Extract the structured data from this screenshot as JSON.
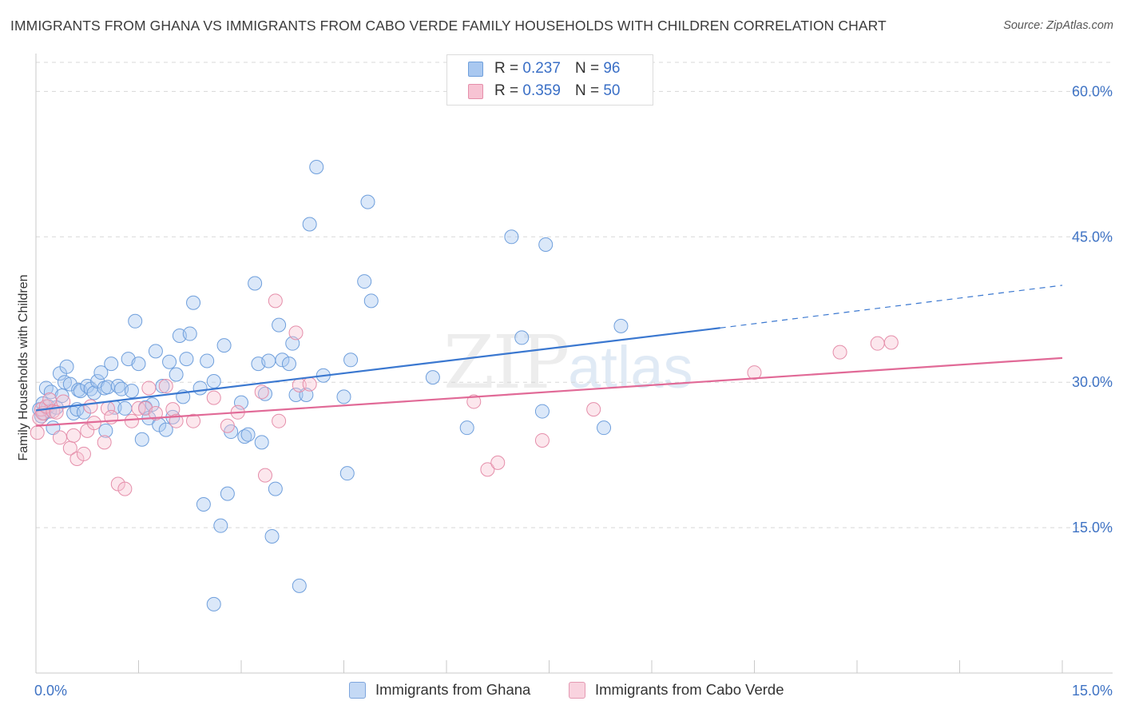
{
  "header": {
    "title": "IMMIGRANTS FROM GHANA VS IMMIGRANTS FROM CABO VERDE FAMILY HOUSEHOLDS WITH CHILDREN CORRELATION CHART",
    "source": "Source: ZipAtlas.com"
  },
  "watermark": {
    "zip": "ZIP",
    "atlas": "atlas"
  },
  "legend": {
    "r_label": "R =",
    "n_label": "N =",
    "rows": [
      {
        "r": "0.237",
        "n": "96",
        "color": "#a9c8f0",
        "border": "#6f9fdc"
      },
      {
        "r": "0.359",
        "n": "50",
        "color": "#f7c3d3",
        "border": "#e58eaa"
      }
    ]
  },
  "bottom_legend": [
    {
      "label": "Immigrants from Ghana",
      "color": "#c4d9f5",
      "border": "#7ea6dd"
    },
    {
      "label": "Immigrants from Cabo Verde",
      "color": "#f9d3df",
      "border": "#e49ab3"
    }
  ],
  "colors": {
    "ghana": "#3b78d0",
    "cabo": "#e16a97",
    "tick_text": "#3f73c4",
    "grid": "#d8d8d8"
  },
  "chart_data": {
    "type": "scatter",
    "title": "IMMIGRANTS FROM GHANA VS IMMIGRANTS FROM CABO VERDE FAMILY HOUSEHOLDS WITH CHILDREN CORRELATION CHART",
    "xlabel": "",
    "ylabel": "Family Households with Children",
    "xlim": [
      0,
      15
    ],
    "ylim": [
      0,
      63
    ],
    "x_tick_labels": [
      "0.0%",
      "15.0%"
    ],
    "y_ticks": [
      15,
      30,
      45,
      60
    ],
    "y_tick_labels": [
      "15.0%",
      "30.0%",
      "45.0%",
      "60.0%"
    ],
    "grid": "horizontal dashed",
    "legend_position": "top-center",
    "series": [
      {
        "name": "Immigrants from Ghana",
        "color": "#6f9fdc",
        "points": [
          [
            0.05,
            27.2
          ],
          [
            0.08,
            26.5
          ],
          [
            0.1,
            27.8
          ],
          [
            0.12,
            26.8
          ],
          [
            0.15,
            29.4
          ],
          [
            0.18,
            27.5
          ],
          [
            0.2,
            27.0
          ],
          [
            0.22,
            29.0
          ],
          [
            0.25,
            25.3
          ],
          [
            0.3,
            27.4
          ],
          [
            0.35,
            30.9
          ],
          [
            0.38,
            28.6
          ],
          [
            0.42,
            30.0
          ],
          [
            0.45,
            31.6
          ],
          [
            0.5,
            29.8
          ],
          [
            0.55,
            26.8
          ],
          [
            0.6,
            27.2
          ],
          [
            0.62,
            29.2
          ],
          [
            0.65,
            29.1
          ],
          [
            0.7,
            26.9
          ],
          [
            0.75,
            29.6
          ],
          [
            0.8,
            29.3
          ],
          [
            0.85,
            28.9
          ],
          [
            0.9,
            30.1
          ],
          [
            0.95,
            31.0
          ],
          [
            1.0,
            29.4
          ],
          [
            1.02,
            25.0
          ],
          [
            1.05,
            29.5
          ],
          [
            1.1,
            31.9
          ],
          [
            1.15,
            27.4
          ],
          [
            1.2,
            29.6
          ],
          [
            1.25,
            29.3
          ],
          [
            1.3,
            27.3
          ],
          [
            1.35,
            32.4
          ],
          [
            1.4,
            29.1
          ],
          [
            1.45,
            36.3
          ],
          [
            1.5,
            31.9
          ],
          [
            1.55,
            24.1
          ],
          [
            1.6,
            27.4
          ],
          [
            1.65,
            26.3
          ],
          [
            1.7,
            27.7
          ],
          [
            1.75,
            33.2
          ],
          [
            1.8,
            25.6
          ],
          [
            1.85,
            29.6
          ],
          [
            1.9,
            25.1
          ],
          [
            1.95,
            32.1
          ],
          [
            2.0,
            26.4
          ],
          [
            2.05,
            30.8
          ],
          [
            2.1,
            34.8
          ],
          [
            2.15,
            28.5
          ],
          [
            2.2,
            32.4
          ],
          [
            2.25,
            35.0
          ],
          [
            2.3,
            38.2
          ],
          [
            2.4,
            29.4
          ],
          [
            2.45,
            17.4
          ],
          [
            2.5,
            32.2
          ],
          [
            2.6,
            30.1
          ],
          [
            2.7,
            15.2
          ],
          [
            2.75,
            33.8
          ],
          [
            2.8,
            18.5
          ],
          [
            2.85,
            24.9
          ],
          [
            3.0,
            27.9
          ],
          [
            3.05,
            24.4
          ],
          [
            3.1,
            24.6
          ],
          [
            3.2,
            40.2
          ],
          [
            3.25,
            31.9
          ],
          [
            3.3,
            23.8
          ],
          [
            3.35,
            28.8
          ],
          [
            3.4,
            32.2
          ],
          [
            3.5,
            19.0
          ],
          [
            3.55,
            35.9
          ],
          [
            3.6,
            32.3
          ],
          [
            3.7,
            31.9
          ],
          [
            3.75,
            34.0
          ],
          [
            3.8,
            28.7
          ],
          [
            3.95,
            28.7
          ],
          [
            4.0,
            46.3
          ],
          [
            4.1,
            52.2
          ],
          [
            4.2,
            30.7
          ],
          [
            4.5,
            28.5
          ],
          [
            4.55,
            20.6
          ],
          [
            4.6,
            32.3
          ],
          [
            4.8,
            40.4
          ],
          [
            4.85,
            48.6
          ],
          [
            4.9,
            38.4
          ],
          [
            3.45,
            14.1
          ],
          [
            2.6,
            7.1
          ],
          [
            3.85,
            9.0
          ],
          [
            5.8,
            30.5
          ],
          [
            6.3,
            25.3
          ],
          [
            6.95,
            45.0
          ],
          [
            7.1,
            34.6
          ],
          [
            7.4,
            27.0
          ],
          [
            7.45,
            44.2
          ],
          [
            8.3,
            25.3
          ],
          [
            8.55,
            35.8
          ]
        ]
      },
      {
        "name": "Immigrants from Cabo Verde",
        "color": "#e58eaa",
        "points": [
          [
            0.02,
            24.8
          ],
          [
            0.05,
            26.3
          ],
          [
            0.08,
            27.2
          ],
          [
            0.1,
            26.8
          ],
          [
            0.15,
            27.5
          ],
          [
            0.2,
            28.2
          ],
          [
            0.25,
            27.0
          ],
          [
            0.3,
            26.9
          ],
          [
            0.35,
            24.3
          ],
          [
            0.4,
            28.0
          ],
          [
            0.5,
            23.2
          ],
          [
            0.55,
            24.5
          ],
          [
            0.6,
            22.1
          ],
          [
            0.7,
            22.6
          ],
          [
            0.75,
            25.0
          ],
          [
            0.8,
            27.5
          ],
          [
            0.85,
            25.8
          ],
          [
            1.0,
            23.8
          ],
          [
            1.05,
            27.3
          ],
          [
            1.1,
            26.4
          ],
          [
            1.2,
            19.5
          ],
          [
            1.3,
            19.0
          ],
          [
            1.4,
            26.0
          ],
          [
            1.5,
            27.3
          ],
          [
            1.6,
            27.3
          ],
          [
            1.65,
            29.4
          ],
          [
            1.75,
            26.8
          ],
          [
            1.9,
            29.6
          ],
          [
            2.0,
            27.2
          ],
          [
            2.05,
            26.0
          ],
          [
            2.3,
            26.0
          ],
          [
            2.6,
            28.4
          ],
          [
            2.8,
            25.5
          ],
          [
            2.95,
            26.9
          ],
          [
            3.3,
            29.0
          ],
          [
            3.35,
            20.4
          ],
          [
            3.5,
            38.4
          ],
          [
            3.55,
            26.0
          ],
          [
            3.8,
            35.1
          ],
          [
            3.85,
            29.7
          ],
          [
            4.0,
            29.8
          ],
          [
            6.4,
            28.0
          ],
          [
            6.6,
            21.0
          ],
          [
            6.75,
            21.7
          ],
          [
            7.4,
            24.0
          ],
          [
            8.15,
            27.2
          ],
          [
            10.5,
            31.0
          ],
          [
            11.75,
            33.1
          ],
          [
            12.3,
            34.0
          ],
          [
            12.5,
            34.1
          ]
        ]
      }
    ],
    "trendlines": [
      {
        "series": "Immigrants from Ghana",
        "x": [
          0,
          10
        ],
        "y": [
          27.1,
          35.6
        ],
        "dashed_extension_to": [
          15,
          40.0
        ]
      },
      {
        "series": "Immigrants from Cabo Verde",
        "x": [
          0,
          15
        ],
        "y": [
          25.5,
          32.5
        ]
      }
    ]
  }
}
